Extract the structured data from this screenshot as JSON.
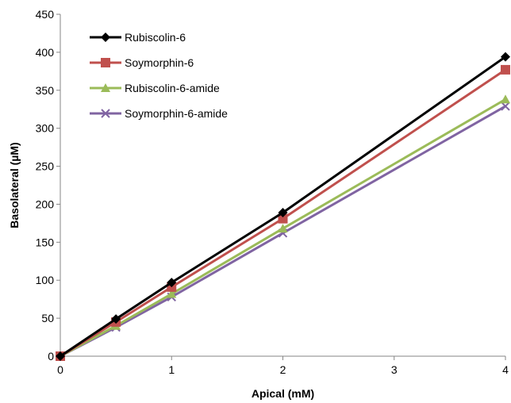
{
  "chart_data": {
    "type": "line",
    "xlabel": "Apical (mM)",
    "ylabel": "Basolateral (µM)",
    "xlim": [
      0,
      4
    ],
    "ylim": [
      0,
      450
    ],
    "x_ticks": [
      0,
      1,
      2,
      3,
      4
    ],
    "y_ticks": [
      0,
      50,
      100,
      150,
      200,
      250,
      300,
      350,
      400,
      450
    ],
    "grid": false,
    "legend_position": "top-left",
    "x": [
      0,
      0.5,
      1,
      2,
      4
    ],
    "series": [
      {
        "name": "Rubiscolin-6",
        "color": "#000000",
        "marker": "diamond",
        "values": [
          0,
          49,
          97,
          189,
          394
        ]
      },
      {
        "name": "Soymorphin-6",
        "color": "#c0504d",
        "marker": "square",
        "values": [
          0,
          45,
          91,
          181,
          377
        ]
      },
      {
        "name": "Rubiscolin-6-amide",
        "color": "#9bbb59",
        "marker": "triangle",
        "values": [
          0,
          40,
          82,
          168,
          338
        ]
      },
      {
        "name": "Soymorphin-6-amide",
        "color": "#8064a2",
        "marker": "x",
        "values": [
          0,
          38,
          78,
          162,
          329
        ]
      }
    ]
  }
}
